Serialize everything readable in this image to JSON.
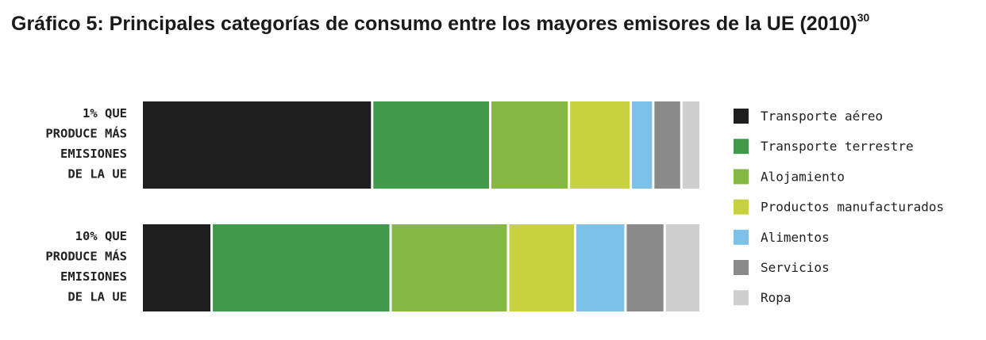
{
  "title": {
    "main": "Gráfico 5: Principales categorías de consumo entre los mayores emisores de la UE (2010)",
    "footnote": "30"
  },
  "colors": {
    "Transporte aéreo": "#1e1e1e",
    "Transporte terrestre": "#3f9a4a",
    "Alojamiento": "#86b846",
    "Productos manufacturados": "#c8d13f",
    "Alimentos": "#7cc1e8",
    "Servicios": "#8a8a8a",
    "Ropa": "#cfcfcf"
  },
  "chart_data": {
    "type": "bar",
    "orientation": "horizontal",
    "stacked": true,
    "normalized": true,
    "title": "Gráfico 5: Principales categorías de consumo entre los mayores emisores de la UE (2010)",
    "categories": [
      [
        "1% QUE",
        "PRODUCE MÁS",
        "EMISIONES",
        "DE LA UE"
      ],
      [
        "10% QUE",
        "PRODUCE MÁS",
        "EMISIONES",
        "DE LA UE"
      ]
    ],
    "series": [
      {
        "name": "Transporte aéreo",
        "values": [
          41,
          12.5
        ]
      },
      {
        "name": "Transporte terrestre",
        "values": [
          21,
          32
        ]
      },
      {
        "name": "Alojamiento",
        "values": [
          14,
          21
        ]
      },
      {
        "name": "Productos manufacturados",
        "values": [
          11,
          12
        ]
      },
      {
        "name": "Alimentos",
        "values": [
          4,
          9
        ]
      },
      {
        "name": "Servicios",
        "values": [
          5,
          7
        ]
      },
      {
        "name": "Ropa",
        "values": [
          3,
          6
        ]
      }
    ],
    "legend_position": "right",
    "grid": false,
    "xlabel": "",
    "ylabel": ""
  }
}
